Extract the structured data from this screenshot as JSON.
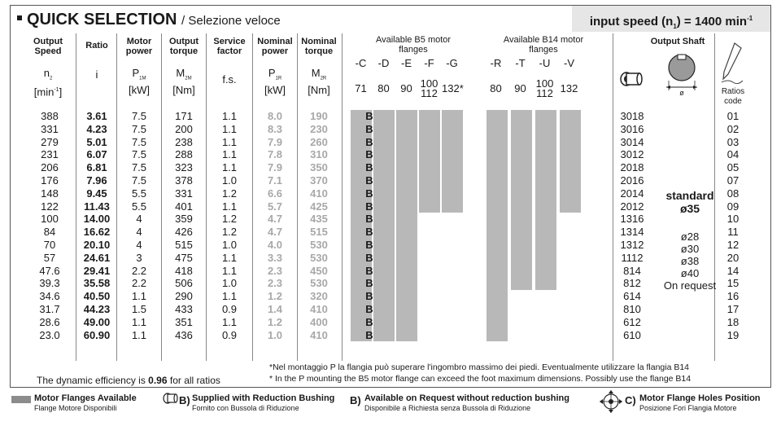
{
  "title": "QUICK SELECTION",
  "subtitle": "/ Selezione veloce",
  "input_speed": {
    "label": "input speed (n",
    "sub": "1",
    "mid": ") = 1400 min",
    "sup": "-1"
  },
  "headers": {
    "output_speed": "Output Speed",
    "ratio": "Ratio",
    "motor_power": "Motor power",
    "output_torque": "Output torque",
    "service_factor": "Service factor",
    "nominal_power": "Nominal power",
    "nominal_torque": "Nominal torque",
    "b5": "Available B5 motor flanges",
    "b14": "Available B14 motor flanges",
    "output_shaft": "Output Shaft",
    "ratios_code": "Ratios code"
  },
  "symbols": {
    "n2": "n",
    "n2_sub": "2",
    "n2_unit": "[min",
    "n2_unit_sup": "-1",
    "n2_close": "]",
    "i": "i",
    "p1m": "P",
    "p1m_sub": "1M",
    "p1m_unit": "[kW]",
    "m2m": "M",
    "m2m_sub": "2M",
    "m2m_unit": "[Nm]",
    "fs": "f.s.",
    "p1r": "P",
    "p1r_sub": "1R",
    "p1r_unit": "[kW]",
    "m2r": "M",
    "m2r_sub": "2R",
    "m2r_unit": "[Nm]"
  },
  "b5_flanges": [
    {
      "code": "-C",
      "size": "71"
    },
    {
      "code": "-D",
      "size": "80"
    },
    {
      "code": "-E",
      "size": "90"
    },
    {
      "code": "-F",
      "size": "100\n112"
    },
    {
      "code": "-G",
      "size": "132*"
    }
  ],
  "b14_flanges": [
    {
      "code": "-R",
      "size": "80"
    },
    {
      "code": "-T",
      "size": "90"
    },
    {
      "code": "-U",
      "size": "100\n112"
    },
    {
      "code": "-V",
      "size": "132"
    }
  ],
  "rows": [
    {
      "speed": "388",
      "ratio": "3.61",
      "power": "7.5",
      "torque": "171",
      "fs": "1.1",
      "pn": "8.0",
      "mn": "190",
      "b": "B",
      "code": "3018",
      "rc": "01"
    },
    {
      "speed": "331",
      "ratio": "4.23",
      "power": "7.5",
      "torque": "200",
      "fs": "1.1",
      "pn": "8.3",
      "mn": "230",
      "b": "B",
      "code": "3016",
      "rc": "02"
    },
    {
      "speed": "279",
      "ratio": "5.01",
      "power": "7.5",
      "torque": "238",
      "fs": "1.1",
      "pn": "7.9",
      "mn": "260",
      "b": "B",
      "code": "3014",
      "rc": "03"
    },
    {
      "speed": "231",
      "ratio": "6.07",
      "power": "7.5",
      "torque": "288",
      "fs": "1.1",
      "pn": "7.8",
      "mn": "310",
      "b": "B",
      "code": "3012",
      "rc": "04"
    },
    {
      "speed": "206",
      "ratio": "6.81",
      "power": "7.5",
      "torque": "323",
      "fs": "1.1",
      "pn": "7.9",
      "mn": "350",
      "b": "B",
      "code": "2018",
      "rc": "05"
    },
    {
      "speed": "176",
      "ratio": "7.96",
      "power": "7.5",
      "torque": "378",
      "fs": "1.0",
      "pn": "7.1",
      "mn": "370",
      "b": "B",
      "code": "2016",
      "rc": "07"
    },
    {
      "speed": "148",
      "ratio": "9.45",
      "power": "5.5",
      "torque": "331",
      "fs": "1.2",
      "pn": "6.6",
      "mn": "410",
      "b": "B",
      "code": "2014",
      "rc": "08"
    },
    {
      "speed": "122",
      "ratio": "11.43",
      "power": "5.5",
      "torque": "401",
      "fs": "1.1",
      "pn": "5.7",
      "mn": "425",
      "b": "B",
      "code": "2012",
      "rc": "09"
    },
    {
      "speed": "100",
      "ratio": "14.00",
      "power": "4",
      "torque": "359",
      "fs": "1.2",
      "pn": "4.7",
      "mn": "435",
      "b": "B",
      "code": "1316",
      "rc": "10"
    },
    {
      "speed": "84",
      "ratio": "16.62",
      "power": "4",
      "torque": "426",
      "fs": "1.2",
      "pn": "4.7",
      "mn": "515",
      "b": "B",
      "code": "1314",
      "rc": "11"
    },
    {
      "speed": "70",
      "ratio": "20.10",
      "power": "4",
      "torque": "515",
      "fs": "1.0",
      "pn": "4.0",
      "mn": "530",
      "b": "B",
      "code": "1312",
      "rc": "12"
    },
    {
      "speed": "57",
      "ratio": "24.61",
      "power": "3",
      "torque": "475",
      "fs": "1.1",
      "pn": "3.3",
      "mn": "530",
      "b": "B",
      "code": "1112",
      "rc": "20"
    },
    {
      "speed": "47.6",
      "ratio": "29.41",
      "power": "2.2",
      "torque": "418",
      "fs": "1.1",
      "pn": "2.3",
      "mn": "450",
      "b": "B",
      "code": "814",
      "rc": "14"
    },
    {
      "speed": "39.3",
      "ratio": "35.58",
      "power": "2.2",
      "torque": "506",
      "fs": "1.0",
      "pn": "2.3",
      "mn": "530",
      "b": "B",
      "code": "812",
      "rc": "15"
    },
    {
      "speed": "34.6",
      "ratio": "40.50",
      "power": "1.1",
      "torque": "290",
      "fs": "1.1",
      "pn": "1.2",
      "mn": "320",
      "b": "B",
      "code": "614",
      "rc": "16"
    },
    {
      "speed": "31.7",
      "ratio": "44.23",
      "power": "1.5",
      "torque": "433",
      "fs": "0.9",
      "pn": "1.4",
      "mn": "410",
      "b": "B",
      "code": "810",
      "rc": "17"
    },
    {
      "speed": "28.6",
      "ratio": "49.00",
      "power": "1.1",
      "torque": "351",
      "fs": "1.1",
      "pn": "1.2",
      "mn": "400",
      "b": "B",
      "code": "612",
      "rc": "18"
    },
    {
      "speed": "23.0",
      "ratio": "60.90",
      "power": "1.1",
      "torque": "436",
      "fs": "0.9",
      "pn": "1.0",
      "mn": "410",
      "b": "B",
      "code": "610",
      "rc": "19"
    }
  ],
  "availability": {
    "b5_rows_available": [
      18,
      18,
      18,
      8,
      8
    ],
    "b14_rows_available": [
      18,
      14,
      14,
      8
    ]
  },
  "shaft": {
    "standard": "standard",
    "standard_size": "ø35",
    "options": [
      "ø28",
      "ø30",
      "ø38",
      "ø40"
    ],
    "on_request": "On request",
    "diameter_symbol": "ø"
  },
  "efficiency": {
    "prefix": "The dynamic efficiency is ",
    "value": "0.96",
    "suffix": " for all ratios"
  },
  "notes": [
    "*Nel montaggio P la flangia può superare l'ingombro massimo dei piedi. Eventualmente utilizzare la flangia B14",
    "* In the P mounting the B5 motor flange can exceed the foot maximum dimensions. Possibly use the flange B14"
  ],
  "legend": [
    {
      "title": "Motor Flanges Available",
      "sub": "Flange Motore Disponibili"
    },
    {
      "letter": "B)",
      "title": "Supplied with Reduction Bushing",
      "sub": "Fornito con Bussola di Riduzione"
    },
    {
      "letter": "B)",
      "title": "Available on Request without reduction bushing",
      "sub": "Disponibile a Richiesta senza Bussola di Riduzione"
    },
    {
      "letter": "C)",
      "title": "Motor Flange Holes Position",
      "sub": "Posizione Fori Flangia Motore"
    }
  ],
  "colors": {
    "bar": "#b8b8b8",
    "header_box": "#e6e6e6",
    "swatch": "#8c8c8c",
    "grey_text": "#a8a8a8"
  }
}
